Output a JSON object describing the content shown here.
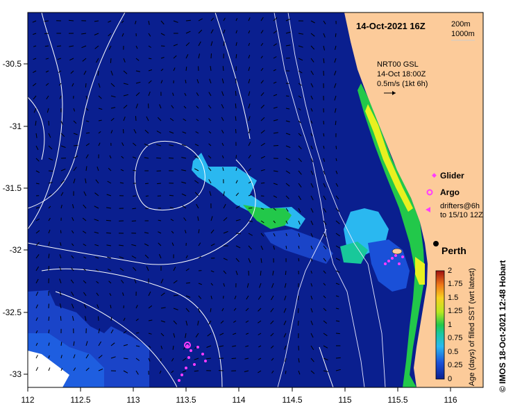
{
  "map": {
    "title": "14-Oct-2021 16Z",
    "depth_labels": [
      "200m",
      "1000m"
    ],
    "current_info": [
      "NRT00 GSL",
      "14-Oct 18:00Z",
      "0.5m/s (1kt 6h)"
    ],
    "city": "Perth",
    "credit": "© IMOS 18-Oct-2021 12:48 Hobart",
    "colors": {
      "ocean_deep": "#0a1f8f",
      "land": "#fccb9a",
      "coast_green": "#7fe04a",
      "coast_yellow": "#e8f020",
      "patch_cyan": "#2ab8f0",
      "patch_teal": "#18c89a",
      "patch_green": "#22c84a",
      "marker": "#ff3cff"
    }
  },
  "axes": {
    "x_ticks": [
      "112",
      "112.5",
      "113",
      "113.5",
      "114",
      "114.5",
      "115",
      "115.5",
      "116"
    ],
    "y_ticks": [
      "-30.5",
      "-31",
      "-31.5",
      "-32",
      "-32.5",
      "-33"
    ]
  },
  "legend": {
    "glider": "Glider",
    "argo": "Argo",
    "drifters_line1": "drifters@6h",
    "drifters_line2": "to 15/10 12Z"
  },
  "colorbar": {
    "label": "Age (days) of filled SST (wrt latest)",
    "ticks": [
      "2",
      "1.75",
      "1.5",
      "1.25",
      "1",
      "0.75",
      "0.5",
      "0.25",
      "0"
    ]
  }
}
